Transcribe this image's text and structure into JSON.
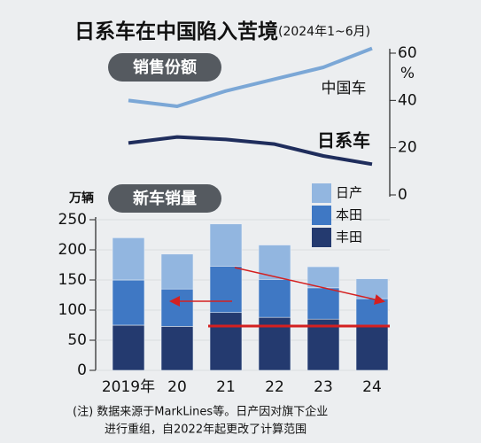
{
  "title": "日系车在中国陷入苦境",
  "subtitle": "(2024年1~6月)",
  "chart_data": [
    {
      "type": "line",
      "title": "销售份额",
      "y2_label": "%",
      "y2lim": [
        0,
        60
      ],
      "y2ticks": [
        0,
        20,
        40,
        60
      ],
      "series": [
        {
          "name": "中国车",
          "color": "#7ba7d6",
          "axis": "y2",
          "values": [
            40,
            37.5,
            44,
            49,
            54,
            62
          ]
        },
        {
          "name": "日系车",
          "color": "#1f2d5c",
          "axis": "y2",
          "values": [
            22,
            24.5,
            23.5,
            21.5,
            16.5,
            13
          ]
        }
      ]
    },
    {
      "type": "stacked_bar",
      "title": "新车销量",
      "y_label": "万辆",
      "categories": [
        "2019年",
        "20",
        "21",
        "22",
        "23",
        "24"
      ],
      "ylim": [
        0,
        250
      ],
      "yticks": [
        0,
        50,
        100,
        150,
        200,
        250
      ],
      "series": [
        {
          "name": "丰田",
          "color": "#243a6f",
          "values": [
            75,
            73,
            96,
            88,
            85,
            72
          ]
        },
        {
          "name": "本田",
          "color": "#3f78c4",
          "values": [
            75,
            62,
            77,
            63,
            52,
            47
          ]
        },
        {
          "name": "日产",
          "color": "#92b6e0",
          "values": [
            70,
            58,
            70,
            57,
            35,
            33
          ]
        }
      ]
    }
  ],
  "note": [
    "(注) 数据来源于MarkLines等。日产因对旗下企业",
    "进行重组，自2022年起更改了计算范围"
  ]
}
